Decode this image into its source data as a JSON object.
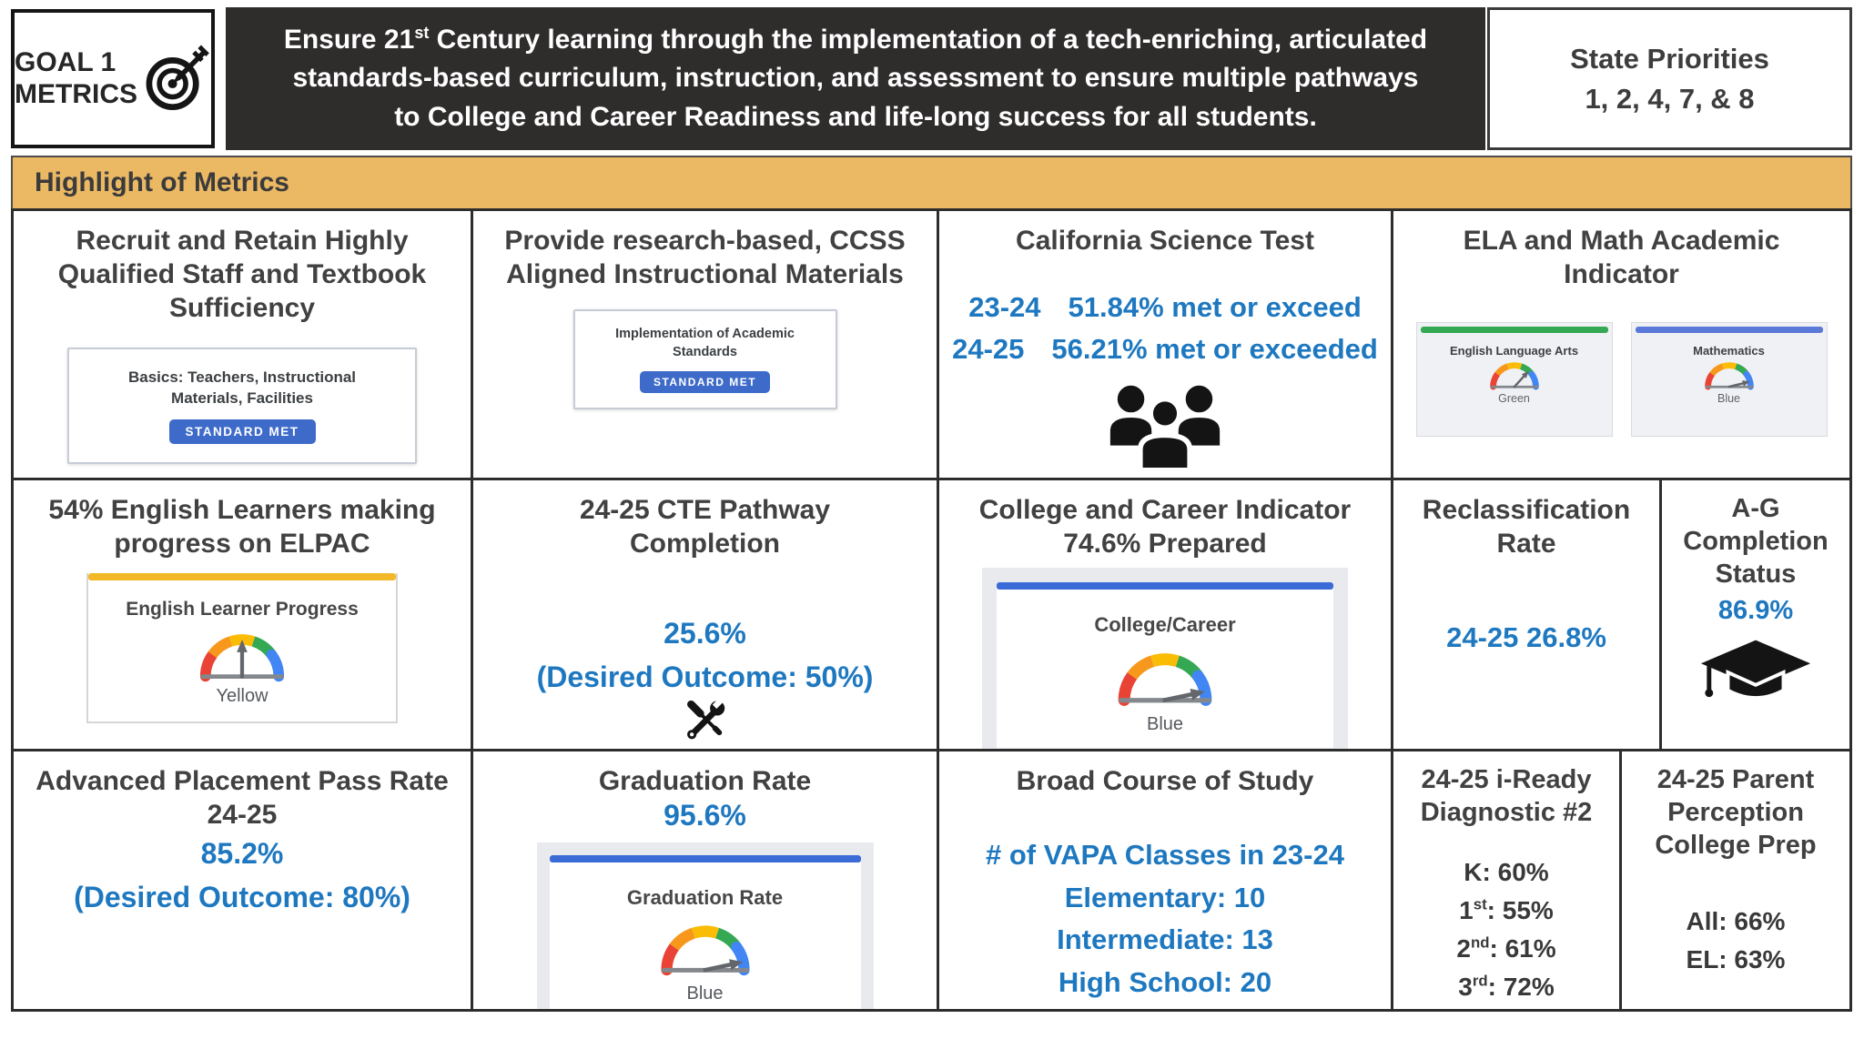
{
  "header": {
    "goal_line1": "GOAL 1",
    "goal_line2": "METRICS",
    "mission": {
      "part1": "Ensure 21",
      "sup": "st",
      "part2": " Century learning through the implementation of a tech-enriching, articulated standards-based curriculum, instruction, and assessment to ensure multiple pathways to College and Career Readiness and life-long success for all students."
    },
    "state_priorities_line1": "State Priorities",
    "state_priorities_line2": "1, 2, 4, 7, & 8"
  },
  "section_bar": {
    "title": "Highlight of Metrics"
  },
  "colors": {
    "header_bg": "#2F2C2C",
    "section_gold": "#EBB964",
    "value_blue": "#1E78C0",
    "badge_blue": "#3E6BC9",
    "gauge_segments": [
      "#E94335",
      "#F7981D",
      "#FBBC05",
      "#34A853",
      "#4285F4"
    ],
    "ela_bar_green": "#34A853",
    "math_bar_blue": "#5B79D8",
    "elpac_bar_gold": "#F2B827",
    "indicator_bar_blue": "#3B6BD6"
  },
  "icons": {
    "goal": "target-arrow-icon",
    "science": "people-group-icon",
    "cte": "crossed-tools-icon",
    "ag": "graduation-cap-icon",
    "gauge": "speedometer-gauge-icon"
  },
  "cells": {
    "r1c1": {
      "title": "Recruit and Retain Highly Qualified Staff and Textbook Sufficiency",
      "card": {
        "line1": "Basics: Teachers, Instructional",
        "line2": "Materials, Facilities",
        "badge": "STANDARD MET"
      }
    },
    "r1c2": {
      "title": "Provide research-based, CCSS Aligned Instructional Materials",
      "card": {
        "line1": "Implementation of Academic",
        "line2": "Standards",
        "badge": "STANDARD MET"
      }
    },
    "r1c3": {
      "title": "California Science Test",
      "rows": [
        {
          "year": "23-24",
          "text": "51.84% met or exceed"
        },
        {
          "year": "24-25",
          "text": "56.21% met or exceeded"
        }
      ]
    },
    "r1c4": {
      "title": "ELA and Math Academic Indicator",
      "gauges": [
        {
          "label": "English Language Arts",
          "color_label": "Green",
          "bar_color": "#34A853",
          "needle_deg": 48
        },
        {
          "label": "Mathematics",
          "color_label": "Blue",
          "bar_color": "#5B79D8",
          "needle_deg": 14
        }
      ]
    },
    "r2c1": {
      "title": "54% English Learners making progress on ELPAC",
      "gauge": {
        "label": "English Learner Progress",
        "color_label": "Yellow",
        "bar_color": "#F2B827",
        "needle_deg": 90
      }
    },
    "r2c2": {
      "title": "24-25 CTE Pathway Completion",
      "value": "25.6%",
      "note": "(Desired Outcome: 50%)"
    },
    "r2c3": {
      "title_line1": "College and Career Indicator",
      "title_line2": "74.6% Prepared",
      "gauge": {
        "label": "College/Career",
        "color_label": "Blue",
        "bar_color": "#3B6BD6",
        "needle_deg": 12
      }
    },
    "r2c4": {
      "title": "Reclassification Rate",
      "value": "24-25 26.8%"
    },
    "r2c5": {
      "title": "A-G Completion Status",
      "value": "86.9%"
    },
    "r3c1": {
      "title": "Advanced Placement Pass Rate 24-25",
      "value": "85.2%",
      "note": "(Desired Outcome: 80%)"
    },
    "r3c2": {
      "title": "Graduation Rate",
      "value": "95.6%",
      "gauge": {
        "label": "Graduation Rate",
        "color_label": "Blue",
        "bar_color": "#3B6BD6",
        "needle_deg": 12
      }
    },
    "r3c3": {
      "title": "Broad Course of Study",
      "lines": [
        "# of VAPA Classes in 23-24",
        "Elementary: 10",
        "Intermediate: 13",
        "High School: 20"
      ]
    },
    "r3c4": {
      "title": "24-25 i-Ready Diagnostic #2",
      "rows": [
        {
          "grade": "K",
          "sup": "",
          "rest": ": 60%"
        },
        {
          "grade": "1",
          "sup": "st",
          "rest": ": 55%"
        },
        {
          "grade": "2",
          "sup": "nd",
          "rest": ": 61%"
        },
        {
          "grade": "3",
          "sup": "rd",
          "rest": ": 72%"
        }
      ]
    },
    "r3c5": {
      "title": "24-25 Parent Perception College Prep",
      "rows": [
        "All: 66%",
        "EL: 63%"
      ]
    }
  }
}
